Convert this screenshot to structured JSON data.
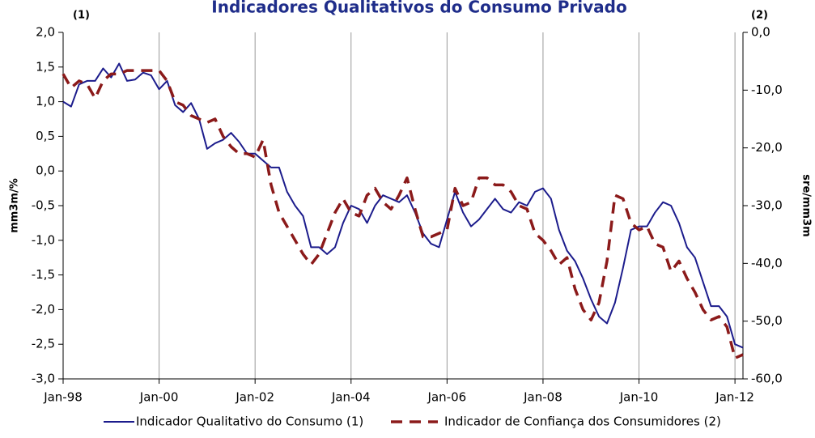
{
  "chart_data": {
    "type": "line",
    "title": "Indicadores Qualitativos do Consumo Privado",
    "annotations": [
      "(1)",
      "(2)"
    ],
    "ylabel": "mm3m/%",
    "y2label": "sre/mm3m",
    "categories": [
      "Jan-98",
      null,
      null,
      null,
      null,
      null,
      null,
      null,
      null,
      null,
      null,
      null,
      "Jan-00",
      null,
      null,
      null,
      null,
      null,
      null,
      null,
      null,
      null,
      null,
      null,
      "Jan-02",
      null,
      null,
      null,
      null,
      null,
      null,
      null,
      null,
      null,
      null,
      null,
      "Jan-04",
      null,
      null,
      null,
      null,
      null,
      null,
      null,
      null,
      null,
      null,
      null,
      "Jan-06",
      null,
      null,
      null,
      null,
      null,
      null,
      null,
      null,
      null,
      null,
      null,
      "Jan-08",
      null,
      null,
      null,
      null,
      null,
      null,
      null,
      null,
      null,
      null,
      null,
      "Jan-10",
      null,
      null,
      null,
      null,
      null,
      null,
      null,
      null,
      null,
      null,
      null,
      "Jan-12",
      null
    ],
    "series": [
      {
        "name": "Indicador Qualitativo do Consumo (1)",
        "color": "#1c1c8c",
        "axis": "y",
        "values": [
          1.0,
          0.93,
          1.25,
          1.3,
          1.3,
          1.48,
          1.35,
          1.55,
          1.3,
          1.32,
          1.42,
          1.38,
          1.18,
          1.3,
          0.95,
          0.85,
          0.98,
          0.75,
          0.32,
          0.4,
          0.45,
          0.55,
          0.42,
          0.25,
          0.25,
          0.15,
          0.05,
          0.05,
          -0.3,
          -0.5,
          -0.65,
          -1.1,
          -1.1,
          -1.2,
          -1.1,
          -0.75,
          -0.5,
          -0.55,
          -0.75,
          -0.5,
          -0.35,
          -0.4,
          -0.45,
          -0.35,
          -0.6,
          -0.9,
          -1.05,
          -1.1,
          -0.7,
          -0.3,
          -0.6,
          -0.8,
          -0.7,
          -0.55,
          -0.4,
          -0.55,
          -0.6,
          -0.45,
          -0.5,
          -0.3,
          -0.25,
          -0.4,
          -0.85,
          -1.15,
          -1.3,
          -1.55,
          -1.85,
          -2.1,
          -2.2,
          -1.9,
          -1.4,
          -0.85,
          -0.8,
          -0.8,
          -0.6,
          -0.45,
          -0.5,
          -0.75,
          -1.1,
          -1.25,
          -1.6,
          -1.95,
          -1.95,
          -2.1,
          -2.5,
          -2.55
        ]
      },
      {
        "name": "Indicador de Confiança dos Consumidores (2)",
        "color": "#8b1a1a",
        "axis": "y2",
        "values": [
          -7.2,
          -9.6,
          -8.4,
          -9,
          -11.4,
          -8.4,
          -7.2,
          -7.2,
          -6.6,
          -6.6,
          -6.6,
          -6.6,
          -6.6,
          -8.4,
          -12,
          -12.6,
          -14.4,
          -15,
          -15.6,
          -15,
          -18,
          -19.8,
          -21,
          -21,
          -21.6,
          -18.6,
          -26.4,
          -31.2,
          -33.6,
          -36,
          -38.4,
          -40.2,
          -38.4,
          -34.8,
          -31.2,
          -28.8,
          -31.2,
          -31.8,
          -28.2,
          -27,
          -29.4,
          -30.6,
          -28.2,
          -25.2,
          -30.6,
          -35.4,
          -35.4,
          -34.8,
          -34.2,
          -27,
          -30,
          -29.4,
          -25.2,
          -25.2,
          -26.4,
          -26.4,
          -27.6,
          -30,
          -30.6,
          -34.8,
          -36,
          -37.8,
          -40.2,
          -39,
          -44.4,
          -48,
          -49.8,
          -46.8,
          -39.6,
          -28.2,
          -28.8,
          -33,
          -34.2,
          -33.6,
          -36.6,
          -37.2,
          -41.4,
          -39.6,
          -42.6,
          -45,
          -48,
          -49.8,
          -49.2,
          -51,
          -56.4,
          -55.8
        ]
      }
    ],
    "ylim": [
      -3,
      2
    ],
    "yticks": [
      {
        "value": 2,
        "label": "2,0"
      },
      {
        "value": 1.5,
        "label": "1,5"
      },
      {
        "value": 1,
        "label": "1,0"
      },
      {
        "value": 0.5,
        "label": "0,5"
      },
      {
        "value": 0,
        "label": "0,0"
      },
      {
        "value": -0.5,
        "label": "-0,5"
      },
      {
        "value": -1,
        "label": "-1,0"
      },
      {
        "value": -1.5,
        "label": "-1,5"
      },
      {
        "value": -2,
        "label": "-2,0"
      },
      {
        "value": -2.5,
        "label": "-2,5"
      },
      {
        "value": -3,
        "label": "-3,0"
      }
    ],
    "y2lim": [
      -60,
      0
    ],
    "y2ticks": [
      {
        "value": 0,
        "label": "0,0"
      },
      {
        "value": -10,
        "label": "-10,0"
      },
      {
        "value": -20,
        "label": "-20,0"
      },
      {
        "value": -30,
        "label": "-30,0"
      },
      {
        "value": -40,
        "label": "-40,0"
      },
      {
        "value": -50,
        "label": "-50,0"
      },
      {
        "value": -60,
        "label": "-60,0"
      }
    ],
    "grid": "x",
    "legend": "bottom"
  }
}
